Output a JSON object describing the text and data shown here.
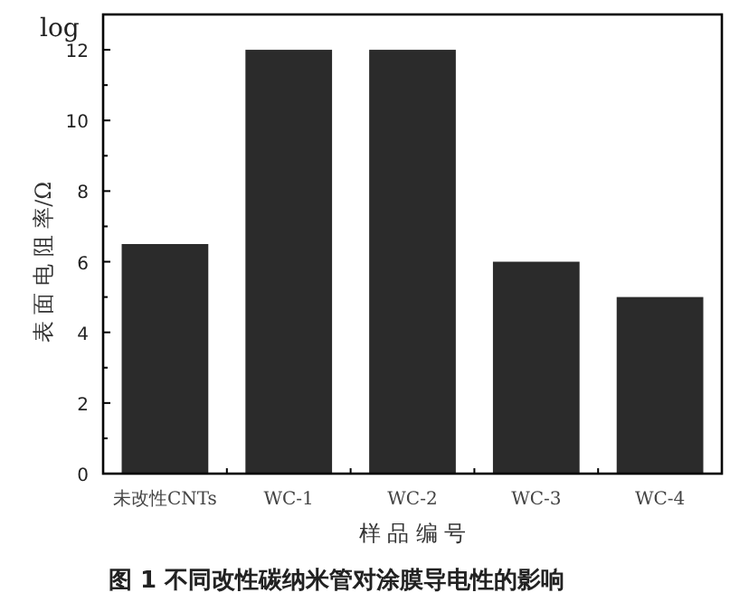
{
  "chart_data": {
    "type": "bar",
    "title": "图 1   不同改性碳纳米管对涂膜导电性的影响",
    "xlabel": "样 品 编 号",
    "ylabel": "表 面 电 阻 率/Ω",
    "annotations": [
      "log"
    ],
    "categories": [
      "未改性CNTs",
      "WC-1",
      "WC-2",
      "WC-3",
      "WC-4"
    ],
    "values": [
      6.5,
      12,
      12,
      6,
      5
    ],
    "color": "#2b2b2b",
    "ylim": [
      0,
      13
    ],
    "yticks": [
      0,
      2,
      4,
      6,
      8,
      10,
      12
    ],
    "grid": false
  }
}
